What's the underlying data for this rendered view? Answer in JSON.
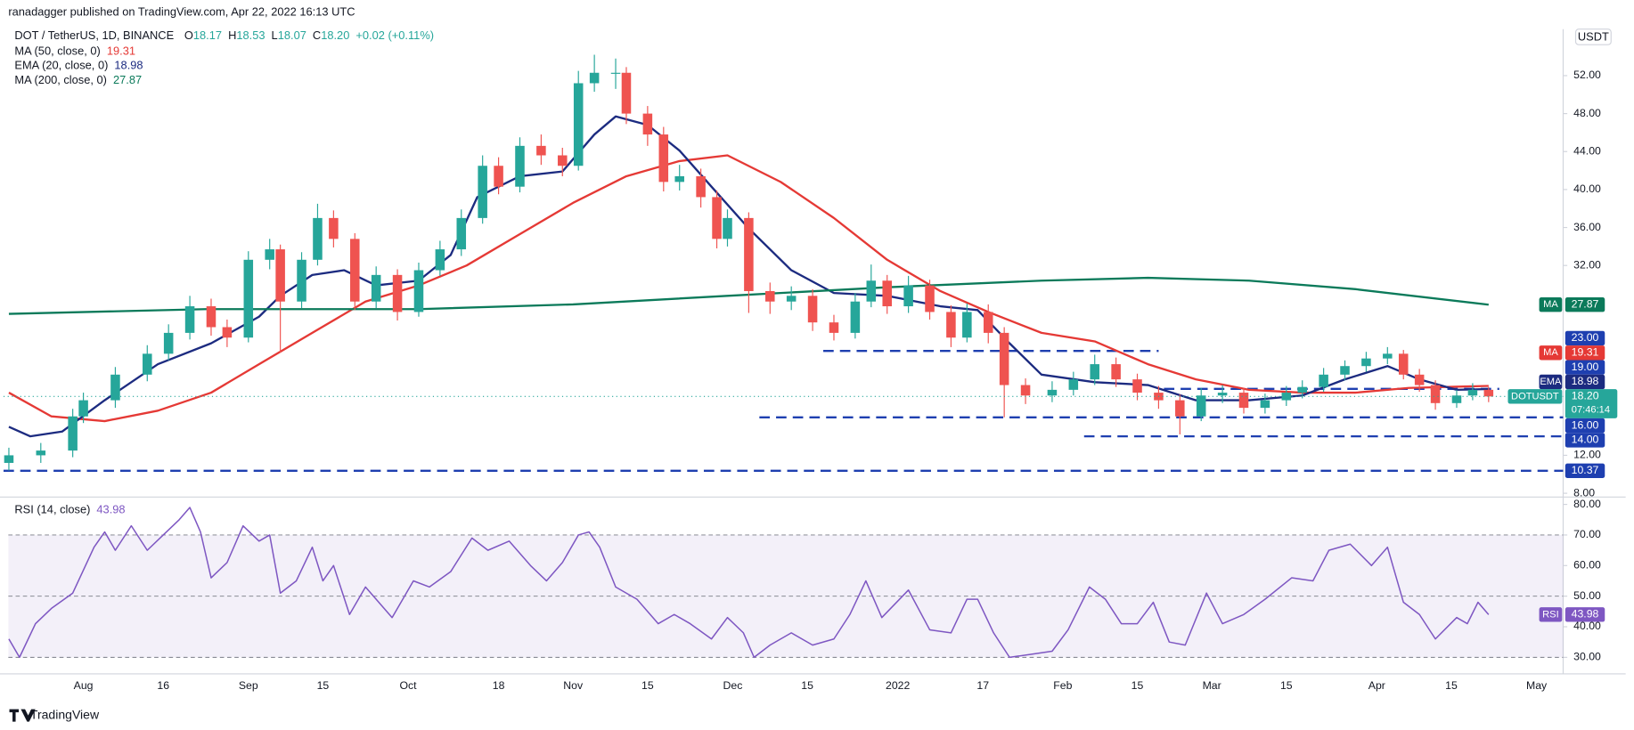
{
  "header": {
    "published": "ranadagger published on TradingView.com, Apr 22, 2022 16:13 UTC",
    "symbol": "DOT / TetherUS, 1D, BINANCE",
    "ohlc": [
      {
        "label": "O",
        "value": "18.17"
      },
      {
        "label": "H",
        "value": "18.53"
      },
      {
        "label": "L",
        "value": "18.07"
      },
      {
        "label": "C",
        "value": "18.20"
      }
    ],
    "change": "+0.02 (+0.11%)",
    "currency": "USDT",
    "countdown": "07:46:14",
    "brand": "TradingView"
  },
  "chart_data": [
    {
      "type": "candlestick",
      "symbol_label": "DOTUSDT",
      "last_price_label": "18.20",
      "up_color": "#26a69a",
      "down_color": "#ef5350",
      "price_line_color": "#26a69a",
      "x": [
        0,
        6,
        12,
        14,
        20,
        26,
        30,
        34,
        38,
        41,
        45,
        49,
        51,
        55,
        58,
        61,
        65,
        69,
        73,
        77,
        81,
        85,
        89,
        92,
        96,
        100,
        104,
        107,
        110,
        114,
        116,
        120,
        123,
        126,
        130,
        133,
        135,
        139,
        143,
        147,
        151,
        155,
        159,
        162,
        165,
        169,
        173,
        177,
        180,
        184,
        187,
        191,
        196,
        200,
        204,
        208,
        212,
        216,
        220,
        224,
        228,
        232,
        236,
        240,
        243,
        247,
        251,
        255,
        259,
        262,
        265,
        268,
        272,
        275,
        278
      ],
      "open": [
        11.2,
        12.0,
        12.5,
        16.1,
        17.8,
        20.5,
        22.7,
        24.9,
        27.7,
        25.5,
        24.4,
        32.6,
        33.7,
        28.2,
        32.6,
        37.0,
        34.8,
        28.2,
        31.0,
        27.1,
        31.5,
        33.7,
        37.0,
        42.5,
        40.3,
        44.6,
        43.6,
        42.5,
        51.2,
        52.3,
        52.3,
        48.0,
        45.8,
        40.8,
        41.4,
        39.2,
        34.8,
        37.0,
        29.3,
        28.2,
        28.8,
        26.0,
        24.9,
        28.2,
        30.4,
        27.7,
        29.9,
        27.1,
        24.4,
        27.1,
        24.9,
        19.4,
        18.3,
        18.9,
        20.0,
        21.6,
        20.0,
        18.6,
        17.8,
        16.1,
        18.3,
        18.6,
        17.0,
        17.8,
        18.6,
        19.2,
        20.5,
        21.4,
        22.2,
        22.7,
        20.5,
        19.4,
        17.5,
        18.3,
        18.9
      ],
      "high": [
        12.8,
        13.3,
        16.9,
        18.6,
        21.3,
        23.6,
        25.8,
        28.8,
        28.5,
        26.3,
        33.5,
        34.8,
        34.2,
        33.4,
        38.5,
        37.8,
        35.4,
        31.9,
        31.6,
        32.3,
        34.6,
        37.9,
        43.6,
        43.4,
        45.5,
        45.8,
        44.4,
        52.5,
        54.2,
        53.8,
        52.9,
        48.8,
        46.6,
        42.6,
        42.2,
        39.9,
        37.9,
        37.6,
        30.2,
        29.8,
        29.5,
        26.8,
        29.1,
        32.1,
        31.0,
        30.9,
        30.5,
        27.8,
        28.0,
        27.9,
        25.5,
        20.1,
        19.8,
        20.8,
        22.6,
        22.3,
        20.6,
        19.3,
        18.4,
        19.1,
        19.4,
        19.1,
        18.5,
        19.3,
        19.9,
        21.2,
        22.0,
        22.9,
        23.4,
        23.1,
        21.1,
        19.9,
        18.9,
        19.6,
        19.2
      ],
      "low": [
        10.4,
        11.2,
        11.8,
        15.4,
        17.0,
        19.8,
        22.0,
        24.2,
        24.6,
        23.4,
        23.9,
        31.6,
        22.8,
        27.5,
        32.0,
        33.9,
        27.3,
        27.5,
        26.2,
        26.6,
        30.9,
        33.0,
        36.4,
        39.5,
        39.7,
        42.6,
        41.4,
        42.0,
        50.3,
        50.6,
        46.9,
        44.6,
        39.8,
        39.9,
        38.1,
        33.8,
        34.0,
        27.0,
        26.9,
        27.3,
        25.1,
        24.1,
        24.3,
        27.6,
        26.9,
        27.0,
        26.3,
        23.4,
        23.9,
        23.8,
        16.0,
        17.4,
        17.6,
        18.3,
        19.4,
        19.2,
        17.8,
        16.9,
        14.2,
        15.6,
        17.5,
        16.4,
        16.4,
        17.2,
        18.0,
        18.7,
        19.9,
        20.8,
        21.6,
        20.0,
        18.7,
        16.8,
        17.0,
        17.8,
        17.6
      ],
      "close": [
        12.0,
        12.5,
        16.1,
        17.8,
        20.5,
        22.7,
        24.9,
        27.7,
        25.5,
        24.4,
        32.6,
        33.7,
        28.2,
        32.6,
        37.0,
        34.8,
        28.2,
        31.0,
        27.1,
        31.5,
        33.7,
        37.0,
        42.5,
        40.3,
        44.6,
        43.6,
        42.5,
        51.2,
        52.3,
        52.3,
        48.0,
        45.8,
        40.8,
        41.4,
        39.2,
        34.8,
        37.0,
        29.3,
        28.2,
        28.8,
        26.0,
        24.9,
        28.2,
        30.4,
        27.7,
        29.9,
        27.1,
        24.4,
        27.1,
        24.9,
        19.4,
        18.3,
        18.9,
        20.0,
        21.6,
        20.0,
        18.6,
        17.8,
        16.1,
        18.3,
        18.6,
        17.0,
        17.8,
        18.6,
        19.2,
        20.5,
        21.4,
        22.2,
        22.7,
        20.5,
        19.4,
        17.5,
        18.3,
        18.9,
        18.2
      ],
      "series": [
        {
          "name": "MA (50, close, 0)",
          "tag": "MA",
          "color": "#e53935",
          "last_value_label": "19.31",
          "x": [
            0,
            8,
            18,
            28,
            38,
            47,
            57,
            67,
            77,
            86,
            96,
            106,
            116,
            126,
            135,
            145,
            155,
            165,
            175,
            184,
            194,
            204,
            214,
            223,
            233,
            243,
            253,
            263,
            278
          ],
          "values": [
            18.6,
            16.1,
            15.6,
            16.7,
            18.6,
            21.6,
            24.9,
            28.2,
            29.9,
            32.0,
            35.3,
            38.6,
            41.4,
            43.0,
            43.6,
            40.8,
            37.0,
            32.6,
            29.3,
            27.1,
            24.9,
            24.0,
            21.6,
            20.0,
            18.9,
            18.6,
            18.6,
            19.1,
            19.31
          ]
        },
        {
          "name": "EMA (20, close, 0)",
          "tag": "EMA",
          "color": "#1c2b80",
          "last_value_label": "18.98",
          "x": [
            0,
            4,
            10,
            18,
            28,
            38,
            47,
            51,
            57,
            63,
            69,
            77,
            83,
            88,
            96,
            104,
            110,
            114,
            120,
            126,
            132,
            139,
            147,
            155,
            165,
            175,
            182,
            188,
            194,
            204,
            214,
            223,
            233,
            243,
            251,
            259,
            265,
            272,
            278
          ],
          "values": [
            15,
            14,
            14.5,
            17.8,
            21.6,
            23.8,
            26.6,
            28.8,
            31,
            31.5,
            29.9,
            30.4,
            33.1,
            39.2,
            41.4,
            41.9,
            45.8,
            47.7,
            46.8,
            44.1,
            40.3,
            35.9,
            31.5,
            29.1,
            28.8,
            27.7,
            27.3,
            23.8,
            20.5,
            19.7,
            19.4,
            17.8,
            17.8,
            18.3,
            20,
            21.4,
            20,
            18.9,
            18.98
          ]
        },
        {
          "name": "MA (200, close, 0)",
          "tag": "MA",
          "color": "#0b7a5a",
          "last_value_label": "27.87",
          "x": [
            0,
            37,
            77,
            106,
            135,
            165,
            194,
            214,
            233,
            253,
            278
          ],
          "values": [
            26.9,
            27.4,
            27.4,
            27.9,
            28.8,
            29.7,
            30.4,
            30.7,
            30.4,
            29.5,
            27.87
          ]
        }
      ],
      "levels": [
        {
          "value": 23,
          "label": "23.00",
          "from": 153,
          "to": 216
        },
        {
          "value": 19,
          "label": "19.00",
          "from": 217,
          "to": 280
        },
        {
          "value": 16,
          "label": "16.00",
          "from": 141,
          "to": 292
        },
        {
          "value": 14,
          "label": "14.00",
          "from": 202,
          "to": 292
        },
        {
          "value": 10.37,
          "label": "10.37",
          "from": -1,
          "to": 292
        }
      ],
      "level_color": "#1e3fb0",
      "xlim": [
        -1,
        292
      ],
      "xticks": [
        {
          "value": 14,
          "label": "Aug"
        },
        {
          "value": 29,
          "label": "16"
        },
        {
          "value": 45,
          "label": "Sep"
        },
        {
          "value": 59,
          "label": "15"
        },
        {
          "value": 75,
          "label": "Oct"
        },
        {
          "value": 92,
          "label": "18"
        },
        {
          "value": 106,
          "label": "Nov"
        },
        {
          "value": 120,
          "label": "15"
        },
        {
          "value": 136,
          "label": "Dec"
        },
        {
          "value": 150,
          "label": "15"
        },
        {
          "value": 167,
          "label": "2022"
        },
        {
          "value": 183,
          "label": "17"
        },
        {
          "value": 198,
          "label": "Feb"
        },
        {
          "value": 212,
          "label": "15"
        },
        {
          "value": 226,
          "label": "Mar"
        },
        {
          "value": 240,
          "label": "15"
        },
        {
          "value": 257,
          "label": "Apr"
        },
        {
          "value": 271,
          "label": "15"
        },
        {
          "value": 287,
          "label": "May"
        }
      ],
      "ylim": [
        7.6,
        56.9
      ],
      "yticks": [
        {
          "value": 8,
          "label": "8.00"
        },
        {
          "value": 12,
          "label": "12.00"
        },
        {
          "value": 32,
          "label": "32.00"
        },
        {
          "value": 36,
          "label": "36.00"
        },
        {
          "value": 40,
          "label": "40.00"
        },
        {
          "value": 44,
          "label": "44.00"
        },
        {
          "value": 48,
          "label": "48.00"
        },
        {
          "value": 52,
          "label": "52.00"
        }
      ]
    },
    {
      "type": "line",
      "title": "RSI (14, close)",
      "tag": "RSI",
      "color": "#7e57c2",
      "last_value_label": "43.98",
      "x": [
        0,
        2,
        5,
        8,
        12,
        16,
        18,
        20,
        23,
        26,
        29,
        32,
        34,
        36,
        38,
        41,
        44,
        47,
        49,
        51,
        54,
        57,
        59,
        61,
        64,
        67,
        72,
        76,
        79,
        83,
        87,
        90,
        94,
        98,
        101,
        104,
        107,
        109,
        111,
        114,
        118,
        122,
        125,
        128,
        132,
        135,
        138,
        140,
        143,
        147,
        151,
        155,
        158,
        161,
        164,
        169,
        173,
        177,
        180,
        182,
        185,
        188,
        192,
        196,
        199,
        203,
        206,
        209,
        212,
        215,
        218,
        221,
        225,
        228,
        232,
        236,
        241,
        245,
        248,
        252,
        256,
        259,
        262,
        265,
        268,
        272,
        274,
        276,
        278
      ],
      "values": [
        36,
        30,
        41,
        46,
        51,
        66,
        71,
        65,
        73,
        65,
        70,
        75,
        79,
        71,
        56,
        61,
        73,
        68,
        70,
        51,
        55,
        66,
        55,
        60,
        44,
        53,
        43,
        55,
        53,
        58,
        69,
        65,
        68,
        60,
        55,
        61,
        70,
        71,
        66,
        53,
        49,
        41,
        44,
        41,
        36,
        43,
        38,
        30,
        34,
        38,
        34,
        36,
        44,
        55,
        43,
        52,
        39,
        38,
        49,
        49,
        38,
        30,
        31,
        32,
        39,
        53,
        49,
        41,
        41,
        48,
        35,
        34,
        51,
        41,
        44,
        49,
        56,
        55,
        65,
        67,
        60,
        66,
        48,
        44,
        36,
        43,
        41,
        48,
        43.98
      ],
      "band": [
        30,
        70
      ],
      "levels": [
        70,
        50,
        30
      ],
      "band_color": "#7e57c2",
      "xlim": [
        -1,
        292
      ],
      "ylim": [
        24.6,
        82.4
      ],
      "yticks": [
        {
          "value": 30,
          "label": "30.00"
        },
        {
          "value": 40,
          "label": "40.00"
        },
        {
          "value": 50,
          "label": "50.00"
        },
        {
          "value": 60,
          "label": "60.00"
        },
        {
          "value": 70,
          "label": "70.00"
        },
        {
          "value": 80,
          "label": "80.00"
        }
      ]
    }
  ]
}
